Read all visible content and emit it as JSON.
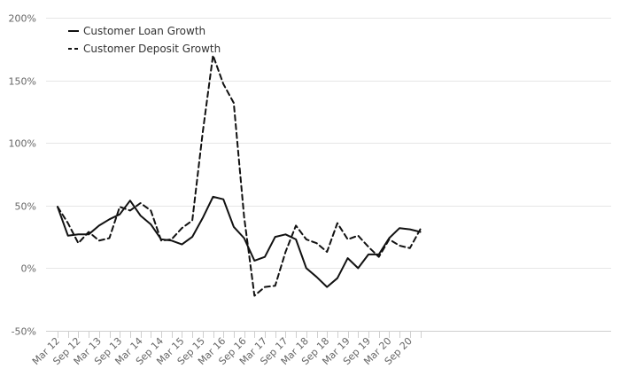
{
  "chart_data": {
    "type": "line",
    "x": [
      "Mar 12",
      "Jun 12",
      "Sep 12",
      "Dec 12",
      "Mar 13",
      "Jun 13",
      "Sep 13",
      "Dec 13",
      "Mar 14",
      "Jun 14",
      "Sep 14",
      "Dec 14",
      "Mar 15",
      "Jun 15",
      "Sep 15",
      "Dec 15",
      "Mar 16",
      "Jun 16",
      "Sep 16",
      "Dec 16",
      "Mar 17",
      "Jun 17",
      "Sep 17",
      "Dec 17",
      "Mar 18",
      "Jun 18",
      "Sep 18",
      "Dec 18",
      "Mar 19",
      "Jun 19",
      "Sep 19",
      "Dec 19",
      "Mar 20",
      "Jun 20",
      "Sep 20",
      "Dec 20"
    ],
    "x_tick_labels": [
      "Mar 12",
      "Sep 12",
      "Mar 13",
      "Sep 13",
      "Mar 14",
      "Sep 14",
      "Mar 15",
      "Sep 15",
      "Mar 16",
      "Sep 16",
      "Mar 17",
      "Sep 17",
      "Mar 18",
      "Sep 18",
      "Mar 19",
      "Sep 19",
      "Mar 20",
      "Sep 20"
    ],
    "y_ticks": [
      -50,
      0,
      50,
      100,
      150,
      200
    ],
    "y_tick_labels": [
      "-50%",
      "0%",
      "50%",
      "100%",
      "150%",
      "200%"
    ],
    "ylim": [
      -50,
      200
    ],
    "grid": "horizontal",
    "legend_position": "top-left",
    "series": [
      {
        "name": "Customer Loan Growth",
        "style": "solid",
        "color": "#111111",
        "values": [
          49,
          26,
          27,
          27,
          34,
          39,
          43,
          54,
          42,
          35,
          23,
          22,
          19,
          25,
          40,
          57,
          55,
          33,
          24,
          6,
          9,
          25,
          27,
          23,
          0,
          -7,
          -15,
          -8,
          8,
          0,
          11,
          11,
          24,
          32,
          31,
          29
        ]
      },
      {
        "name": "Customer Deposit Growth",
        "style": "dashed",
        "color": "#111111",
        "values": [
          49,
          36,
          20,
          29,
          22,
          24,
          49,
          46,
          52,
          46,
          22,
          23,
          32,
          38,
          108,
          170,
          147,
          132,
          41,
          -22,
          -15,
          -14,
          13,
          34,
          23,
          20,
          13,
          36,
          23,
          26,
          17,
          9,
          23,
          18,
          16,
          31
        ]
      }
    ]
  }
}
